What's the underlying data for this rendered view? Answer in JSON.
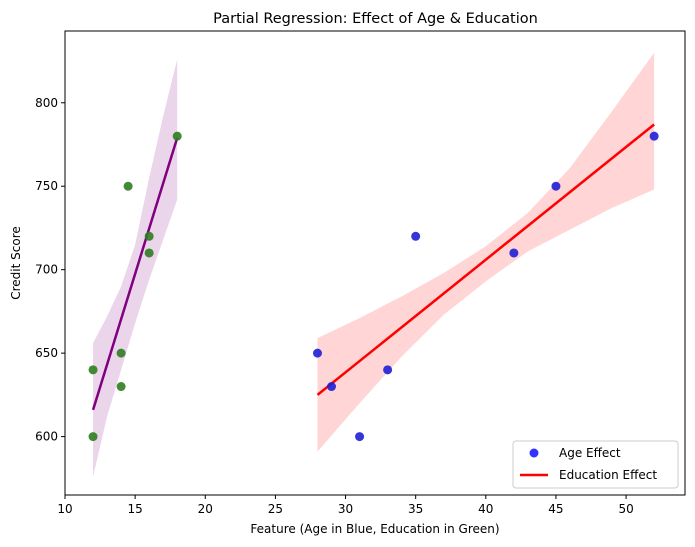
{
  "chart_data": {
    "type": "scatter",
    "title": "Partial Regression: Effect of Age & Education",
    "xlabel": "Feature (Age in Blue, Education in Green)",
    "ylabel": "Credit Score",
    "xlim": [
      10,
      54.2
    ],
    "ylim": [
      565,
      843
    ],
    "xticks": [
      10,
      15,
      20,
      25,
      30,
      35,
      40,
      45,
      50
    ],
    "yticks": [
      600,
      650,
      700,
      750,
      800
    ],
    "grid": false,
    "legend_position": "lower right",
    "legend": [
      {
        "label": "Age Effect",
        "marker": "circle",
        "color": "#0000ff"
      },
      {
        "label": "Education Effect",
        "marker": "line",
        "color": "#ff0000"
      }
    ],
    "series": [
      {
        "name": "Age Effect",
        "kind": "points",
        "color": "#1f1fd6",
        "x": [
          28,
          29,
          31,
          33,
          35,
          42,
          45,
          52
        ],
        "y": [
          650,
          630,
          600,
          640,
          720,
          710,
          750,
          780
        ]
      },
      {
        "name": "Education Effect",
        "kind": "regression_line",
        "color": "#ff0000",
        "x": [
          28,
          52
        ],
        "y": [
          625,
          787
        ],
        "ci_color": "#ffb3b3",
        "ci_upper": [
          {
            "x": 28,
            "y": 659
          },
          {
            "x": 31,
            "y": 671
          },
          {
            "x": 34,
            "y": 684
          },
          {
            "x": 37,
            "y": 698
          },
          {
            "x": 40,
            "y": 714
          },
          {
            "x": 43,
            "y": 734
          },
          {
            "x": 46,
            "y": 761
          },
          {
            "x": 49,
            "y": 795
          },
          {
            "x": 52,
            "y": 830
          }
        ],
        "ci_lower": [
          {
            "x": 28,
            "y": 591
          },
          {
            "x": 31,
            "y": 620
          },
          {
            "x": 34,
            "y": 648
          },
          {
            "x": 37,
            "y": 673
          },
          {
            "x": 40,
            "y": 693
          },
          {
            "x": 43,
            "y": 711
          },
          {
            "x": 46,
            "y": 724
          },
          {
            "x": 49,
            "y": 737
          },
          {
            "x": 52,
            "y": 748
          }
        ]
      },
      {
        "name": "",
        "kind": "points",
        "color": "#2e7d1f",
        "x": [
          12,
          12,
          14,
          14,
          14.5,
          16,
          16,
          18
        ],
        "y": [
          640,
          600,
          650,
          630,
          750,
          720,
          710,
          780
        ]
      },
      {
        "name": "",
        "kind": "regression_line",
        "color": "#800080",
        "x": [
          12,
          18
        ],
        "y": [
          616,
          779
        ],
        "ci_color": "#d8b2d8",
        "ci_upper": [
          {
            "x": 12,
            "y": 656
          },
          {
            "x": 13,
            "y": 672
          },
          {
            "x": 14,
            "y": 690
          },
          {
            "x": 15,
            "y": 715
          },
          {
            "x": 16,
            "y": 755
          },
          {
            "x": 17,
            "y": 792
          },
          {
            "x": 18,
            "y": 826
          }
        ],
        "ci_lower": [
          {
            "x": 12,
            "y": 576
          },
          {
            "x": 13,
            "y": 612
          },
          {
            "x": 14,
            "y": 640
          },
          {
            "x": 15,
            "y": 668
          },
          {
            "x": 16,
            "y": 694
          },
          {
            "x": 17,
            "y": 718
          },
          {
            "x": 18,
            "y": 742
          }
        ]
      }
    ]
  }
}
